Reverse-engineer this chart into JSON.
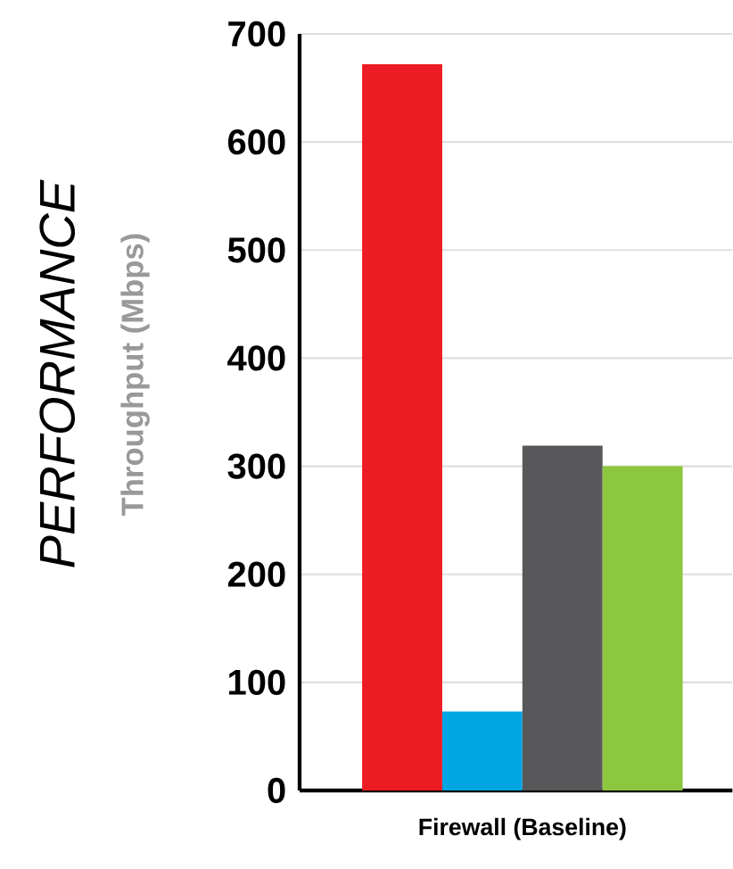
{
  "chart_data": {
    "type": "bar",
    "title": "PERFORMANCE",
    "ylabel": "Throughput (Mbps)",
    "xlabel": "Firewall (Baseline)",
    "categories": [
      null,
      null,
      null,
      null
    ],
    "values": [
      672,
      73,
      319,
      300
    ],
    "colors": [
      "#ed1c24",
      "#00a6e2",
      "#58585a",
      "#8dc63f"
    ],
    "ylim": [
      0,
      700
    ],
    "yticks": [
      0,
      100,
      200,
      300,
      400,
      500,
      600,
      700
    ],
    "grid": "y"
  }
}
